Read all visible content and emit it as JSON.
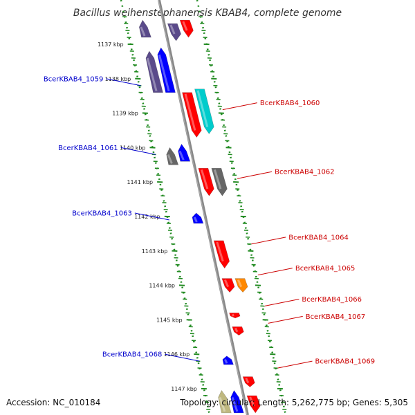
{
  "title": "Bacillus weihenstephanensis KBAB4, complete genome",
  "footer": {
    "accession": "Accession: NC_010184",
    "topology": "Topology: circular; Length: 5,262,775 bp; Genes: 5,305"
  },
  "colors": {
    "forward_label": "#cc0000",
    "reverse_label": "#0000cc",
    "ruler": "#228b22",
    "backbone": "#888888"
  },
  "ticks": [
    {
      "label": "1137 kbp",
      "kbp": 1137
    },
    {
      "label": "1138 kbp",
      "kbp": 1138
    },
    {
      "label": "1139 kbp",
      "kbp": 1139
    },
    {
      "label": "1140 kbp",
      "kbp": 1140
    },
    {
      "label": "1141 kbp",
      "kbp": 1141
    },
    {
      "label": "1142 kbp",
      "kbp": 1142
    },
    {
      "label": "1143 kbp",
      "kbp": 1143
    },
    {
      "label": "1144 kbp",
      "kbp": 1144
    },
    {
      "label": "1145 kbp",
      "kbp": 1145
    },
    {
      "label": "1146 kbp",
      "kbp": 1146
    },
    {
      "label": "1147 kbp",
      "kbp": 1147
    }
  ],
  "gene_labels": [
    {
      "id": "BcerKBAB4_1059",
      "strand": "reverse",
      "kbp": 1138.2
    },
    {
      "id": "BcerKBAB4_1060",
      "strand": "forward",
      "kbp": 1138.9
    },
    {
      "id": "BcerKBAB4_1061",
      "strand": "reverse",
      "kbp": 1140.2
    },
    {
      "id": "BcerKBAB4_1062",
      "strand": "forward",
      "kbp": 1140.9
    },
    {
      "id": "BcerKBAB4_1063",
      "strand": "reverse",
      "kbp": 1142.1
    },
    {
      "id": "BcerKBAB4_1064",
      "strand": "forward",
      "kbp": 1142.8
    },
    {
      "id": "BcerKBAB4_1065",
      "strand": "forward",
      "kbp": 1143.7
    },
    {
      "id": "BcerKBAB4_1066",
      "strand": "forward",
      "kbp": 1144.6
    },
    {
      "id": "BcerKBAB4_1067",
      "strand": "forward",
      "kbp": 1145.1
    },
    {
      "id": "BcerKBAB4_1068",
      "strand": "reverse",
      "kbp": 1146.2
    },
    {
      "id": "BcerKBAB4_1069",
      "strand": "forward",
      "kbp": 1146.4
    }
  ],
  "features": [
    {
      "name": "feature-1059",
      "track": "outer-reverse",
      "start": 1136.3,
      "end": 1136.8,
      "color": "#5a4a8a"
    },
    {
      "name": "feature-1058",
      "track": "outer-forward",
      "start": 1136.3,
      "end": 1136.8,
      "color": "#ff0000"
    },
    {
      "name": "feature-1058b",
      "track": "inner-forward",
      "start": 1136.4,
      "end": 1136.9,
      "color": "#5a4a8a"
    },
    {
      "name": "feature-1059a",
      "track": "outer-reverse",
      "start": 1137.2,
      "end": 1138.4,
      "color": "#5a4a8a"
    },
    {
      "name": "feature-1059b",
      "track": "inner-reverse",
      "start": 1137.1,
      "end": 1138.4,
      "color": "#0000ff"
    },
    {
      "name": "feature-1060a",
      "track": "inner-forward",
      "start": 1138.4,
      "end": 1139.7,
      "color": "#ff0000"
    },
    {
      "name": "feature-1060b",
      "track": "outer-forward",
      "start": 1138.3,
      "end": 1139.6,
      "color": "#00cccc"
    },
    {
      "name": "feature-1061a",
      "track": "outer-reverse",
      "start": 1140.0,
      "end": 1140.5,
      "color": "#666666"
    },
    {
      "name": "feature-1061b",
      "track": "inner-reverse",
      "start": 1139.9,
      "end": 1140.4,
      "color": "#0000ff"
    },
    {
      "name": "feature-1062a",
      "track": "inner-forward",
      "start": 1140.6,
      "end": 1141.4,
      "color": "#ff0000"
    },
    {
      "name": "feature-1062b",
      "track": "outer-forward",
      "start": 1140.6,
      "end": 1141.4,
      "color": "#666666"
    },
    {
      "name": "feature-1063",
      "track": "inner-reverse",
      "start": 1141.9,
      "end": 1142.2,
      "color": "#0000ff"
    },
    {
      "name": "feature-1064",
      "track": "inner-forward",
      "start": 1142.7,
      "end": 1143.5,
      "color": "#ff0000"
    },
    {
      "name": "feature-1065a",
      "track": "inner-forward",
      "start": 1143.8,
      "end": 1144.2,
      "color": "#ff0000"
    },
    {
      "name": "feature-1065b",
      "track": "outer-forward",
      "start": 1143.8,
      "end": 1144.2,
      "color": "#ff8800"
    },
    {
      "name": "feature-1066",
      "track": "inner-forward",
      "start": 1144.8,
      "end": 1144.95,
      "color": "#ff0000"
    },
    {
      "name": "feature-1067",
      "track": "inner-forward",
      "start": 1145.2,
      "end": 1145.45,
      "color": "#ff0000"
    },
    {
      "name": "feature-1068",
      "track": "inner-reverse",
      "start": 1146.05,
      "end": 1146.3,
      "color": "#0000ff"
    },
    {
      "name": "feature-1069",
      "track": "inner-forward",
      "start": 1146.65,
      "end": 1146.95,
      "color": "#ff0000"
    },
    {
      "name": "feature-1070a",
      "track": "outer-reverse",
      "start": 1147.05,
      "end": 1147.7,
      "color": "#bfb880"
    },
    {
      "name": "feature-1070b",
      "track": "inner-reverse",
      "start": 1147.05,
      "end": 1147.7,
      "color": "#0000ff"
    },
    {
      "name": "feature-1070c",
      "track": "inner-forward",
      "start": 1147.2,
      "end": 1147.7,
      "color": "#ff0000"
    }
  ]
}
